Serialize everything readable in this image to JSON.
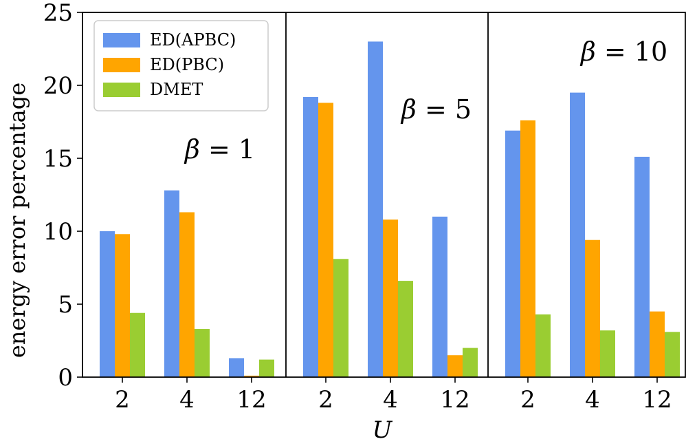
{
  "chart_data": {
    "type": "bar",
    "ylabel": "energy error percentage",
    "xlabel": "U",
    "ylim": [
      0,
      25
    ],
    "yticks": [
      0,
      5,
      10,
      15,
      20,
      25
    ],
    "legend_position": "top-left",
    "grid": false,
    "series": [
      {
        "name": "ED(APBC)",
        "color": "#6495ED"
      },
      {
        "name": "ED(PBC)",
        "color": "#FFA500"
      },
      {
        "name": "DMET",
        "color": "#9ACD32"
      }
    ],
    "panels": [
      {
        "annotation": {
          "symbol": "β",
          "text": " = 1"
        },
        "categories": [
          "2",
          "4",
          "12"
        ],
        "values": [
          [
            10.0,
            12.8,
            1.3
          ],
          [
            9.8,
            11.3,
            0.1
          ],
          [
            4.4,
            3.3,
            1.2
          ]
        ]
      },
      {
        "annotation": {
          "symbol": "β",
          "text": " = 5"
        },
        "categories": [
          "2",
          "4",
          "12"
        ],
        "values": [
          [
            19.2,
            23.0,
            11.0
          ],
          [
            18.8,
            10.8,
            1.5
          ],
          [
            8.1,
            6.6,
            2.0
          ]
        ]
      },
      {
        "annotation": {
          "symbol": "β",
          "text": " = 10"
        },
        "categories": [
          "2",
          "4",
          "12"
        ],
        "values": [
          [
            16.9,
            19.5,
            15.1
          ],
          [
            17.6,
            9.4,
            4.5
          ],
          [
            4.3,
            3.2,
            3.1
          ]
        ]
      }
    ]
  }
}
